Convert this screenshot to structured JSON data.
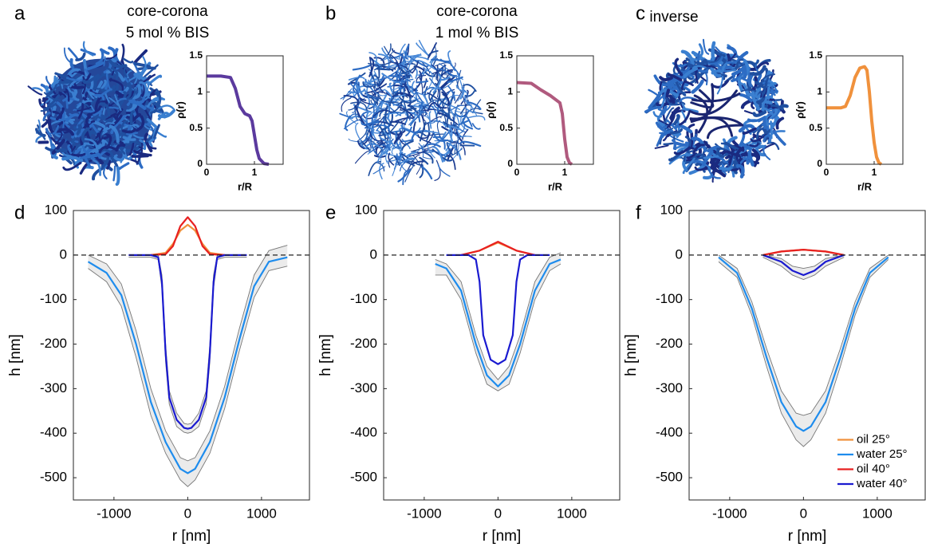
{
  "chart_data": [
    {
      "type": "line",
      "panel_label": "a",
      "title": [
        "core-corona",
        "5 mol % BIS"
      ],
      "xlabel": "r/R",
      "ylabel": "ρ(r)",
      "xlim": [
        0,
        1.6
      ],
      "ylim": [
        0,
        1.5
      ],
      "xticks": [
        0,
        1
      ],
      "yticks": [
        0,
        0.5,
        1,
        1.5
      ],
      "series": [
        {
          "color": "#5b3a9e",
          "x": [
            0,
            0.3,
            0.5,
            0.6,
            0.7,
            0.8,
            0.9,
            0.95,
            1.0,
            1.05,
            1.1,
            1.2,
            1.3
          ],
          "values": [
            1.22,
            1.22,
            1.2,
            1.05,
            0.8,
            0.7,
            0.67,
            0.6,
            0.4,
            0.2,
            0.08,
            0.01,
            0
          ]
        }
      ]
    },
    {
      "type": "line",
      "panel_label": "b",
      "title": [
        "core-corona",
        "1 mol % BIS"
      ],
      "xlabel": "r/R",
      "ylabel": "ρ(r)",
      "xlim": [
        0,
        1.6
      ],
      "ylim": [
        0,
        1.5
      ],
      "xticks": [
        0,
        1
      ],
      "yticks": [
        0,
        0.5,
        1,
        1.5
      ],
      "series": [
        {
          "color": "#b05a7e",
          "x": [
            0,
            0.3,
            0.5,
            0.7,
            0.9,
            0.95,
            1.0,
            1.05,
            1.1,
            1.15
          ],
          "values": [
            1.13,
            1.12,
            1.03,
            0.95,
            0.85,
            0.7,
            0.35,
            0.1,
            0.02,
            0
          ]
        }
      ]
    },
    {
      "type": "line",
      "panel_label": "c",
      "title": [
        "inverse"
      ],
      "xlabel": "r/R",
      "ylabel": "ρ(r)",
      "xlim": [
        0,
        1.6
      ],
      "ylim": [
        0,
        1.5
      ],
      "xticks": [
        0,
        1
      ],
      "yticks": [
        0,
        0.5,
        1,
        1.5
      ],
      "series": [
        {
          "color": "#f0913c",
          "x": [
            0,
            0.3,
            0.4,
            0.5,
            0.6,
            0.7,
            0.8,
            0.85,
            0.9,
            0.95,
            1.0,
            1.05,
            1.1,
            1.15
          ],
          "values": [
            0.78,
            0.78,
            0.8,
            0.95,
            1.2,
            1.33,
            1.35,
            1.3,
            1.0,
            0.6,
            0.3,
            0.1,
            0.02,
            0
          ]
        }
      ]
    },
    {
      "type": "line",
      "panel_label": "d",
      "xlabel": "r [nm]",
      "ylabel": "h [nm]",
      "hline": 0,
      "xlim": [
        -1550,
        1650
      ],
      "ylim": [
        -550,
        100
      ],
      "xticks": [
        -1000,
        0,
        1000
      ],
      "yticks": [
        -500,
        -400,
        -300,
        -200,
        -100,
        0,
        100
      ],
      "series": [
        {
          "color": "#f0913c",
          "x": [
            -500,
            -300,
            -200,
            -100,
            0,
            100,
            200,
            300,
            500
          ],
          "values": [
            0,
            5,
            25,
            55,
            68,
            55,
            25,
            5,
            0
          ]
        },
        {
          "color": "#1e8ced",
          "x": [
            -1350,
            -1100,
            -900,
            -700,
            -500,
            -300,
            -100,
            0,
            100,
            300,
            500,
            700,
            900,
            1100,
            1350
          ],
          "values": [
            -15,
            -40,
            -90,
            -200,
            -330,
            -420,
            -480,
            -490,
            -480,
            -420,
            -320,
            -190,
            -70,
            -15,
            -5
          ],
          "upper": [
            0,
            -20,
            -65,
            -170,
            -300,
            -395,
            -455,
            -462,
            -455,
            -395,
            -295,
            -165,
            -45,
            10,
            22
          ],
          "lower": [
            -30,
            -60,
            -115,
            -230,
            -360,
            -445,
            -505,
            -520,
            -505,
            -445,
            -345,
            -215,
            -95,
            -35,
            -25
          ]
        },
        {
          "color": "#e82020",
          "x": [
            -500,
            -300,
            -200,
            -100,
            0,
            100,
            200,
            300,
            500
          ],
          "values": [
            0,
            2,
            20,
            65,
            85,
            65,
            20,
            2,
            0
          ]
        },
        {
          "color": "#1a1ad0",
          "x": [
            -800,
            -500,
            -400,
            -350,
            -300,
            -250,
            -150,
            -50,
            0,
            50,
            150,
            250,
            300,
            350,
            400,
            500,
            800
          ],
          "values": [
            0,
            0,
            -5,
            -60,
            -220,
            -320,
            -370,
            -388,
            -390,
            -388,
            -370,
            -320,
            -220,
            -60,
            -5,
            0,
            0
          ],
          "upper": [
            0,
            0,
            0,
            -45,
            -200,
            -305,
            -355,
            -378,
            -380,
            -378,
            -355,
            -305,
            -200,
            -45,
            0,
            0,
            0
          ],
          "lower": [
            -5,
            -5,
            -10,
            -75,
            -240,
            -335,
            -385,
            -398,
            -400,
            -398,
            -385,
            -335,
            -240,
            -75,
            -10,
            -5,
            -5
          ]
        }
      ]
    },
    {
      "type": "line",
      "panel_label": "e",
      "xlabel": "r [nm]",
      "ylabel": "h [nm]",
      "hline": 0,
      "xlim": [
        -1550,
        1650
      ],
      "ylim": [
        -550,
        100
      ],
      "xticks": [
        -1000,
        0,
        1000
      ],
      "yticks": [
        -500,
        -400,
        -300,
        -200,
        -100,
        0,
        100
      ],
      "series": [
        {
          "color": "#f0913c",
          "x": [
            -500,
            -250,
            0,
            250,
            500
          ],
          "values": [
            0,
            10,
            28,
            10,
            0
          ]
        },
        {
          "color": "#1e8ced",
          "x": [
            -850,
            -700,
            -500,
            -300,
            -150,
            0,
            150,
            300,
            500,
            700,
            850
          ],
          "values": [
            -20,
            -30,
            -80,
            -200,
            -270,
            -295,
            -270,
            -200,
            -80,
            -20,
            -10
          ],
          "upper": [
            -10,
            -20,
            -60,
            -180,
            -250,
            -280,
            -250,
            -180,
            -60,
            -5,
            5
          ],
          "lower": [
            -45,
            -45,
            -100,
            -220,
            -290,
            -305,
            -290,
            -220,
            -100,
            -35,
            -20
          ]
        },
        {
          "color": "#e82020",
          "x": [
            -500,
            -250,
            0,
            250,
            500
          ],
          "values": [
            0,
            10,
            30,
            10,
            0
          ]
        },
        {
          "color": "#1a1ad0",
          "x": [
            -700,
            -400,
            -300,
            -250,
            -200,
            -100,
            0,
            100,
            200,
            250,
            300,
            400,
            700
          ],
          "values": [
            0,
            0,
            -10,
            -60,
            -180,
            -235,
            -245,
            -235,
            -180,
            -60,
            -10,
            0,
            0
          ]
        }
      ]
    },
    {
      "type": "line",
      "panel_label": "f",
      "xlabel": "r [nm]",
      "ylabel": "h [nm]",
      "hline": 0,
      "legend": "lower right",
      "xlim": [
        -1550,
        1650
      ],
      "ylim": [
        -550,
        100
      ],
      "xticks": [
        -1000,
        0,
        1000
      ],
      "yticks": [
        -500,
        -400,
        -300,
        -200,
        -100,
        0,
        100
      ],
      "series": [
        {
          "name": "oil 25°",
          "color": "#f0913c",
          "x": [
            -550,
            -300,
            0,
            300,
            550
          ],
          "values": [
            0,
            8,
            12,
            8,
            0
          ]
        },
        {
          "name": "water 25°",
          "color": "#1e8ced",
          "x": [
            -1150,
            -900,
            -700,
            -500,
            -300,
            -100,
            0,
            100,
            300,
            500,
            700,
            900,
            1150
          ],
          "values": [
            -5,
            -40,
            -120,
            -230,
            -330,
            -385,
            -395,
            -385,
            -330,
            -230,
            -120,
            -40,
            -5
          ],
          "upper": [
            0,
            -30,
            -105,
            -210,
            -305,
            -355,
            -360,
            -355,
            -305,
            -210,
            -105,
            -30,
            0
          ],
          "lower": [
            -15,
            -50,
            -135,
            -250,
            -355,
            -415,
            -430,
            -415,
            -355,
            -250,
            -135,
            -50,
            -10
          ]
        },
        {
          "name": "oil 40°",
          "color": "#e82020",
          "x": [
            -550,
            -300,
            0,
            300,
            550
          ],
          "values": [
            0,
            8,
            12,
            8,
            0
          ]
        },
        {
          "name": "water 40°",
          "color": "#1a1ad0",
          "x": [
            -550,
            -300,
            -150,
            0,
            150,
            300,
            550
          ],
          "values": [
            0,
            -15,
            -35,
            -45,
            -35,
            -15,
            0
          ],
          "upper": [
            0,
            -8,
            -25,
            -30,
            -25,
            -8,
            0
          ],
          "lower": [
            -5,
            -25,
            -45,
            -55,
            -45,
            -25,
            -5
          ]
        }
      ]
    }
  ]
}
